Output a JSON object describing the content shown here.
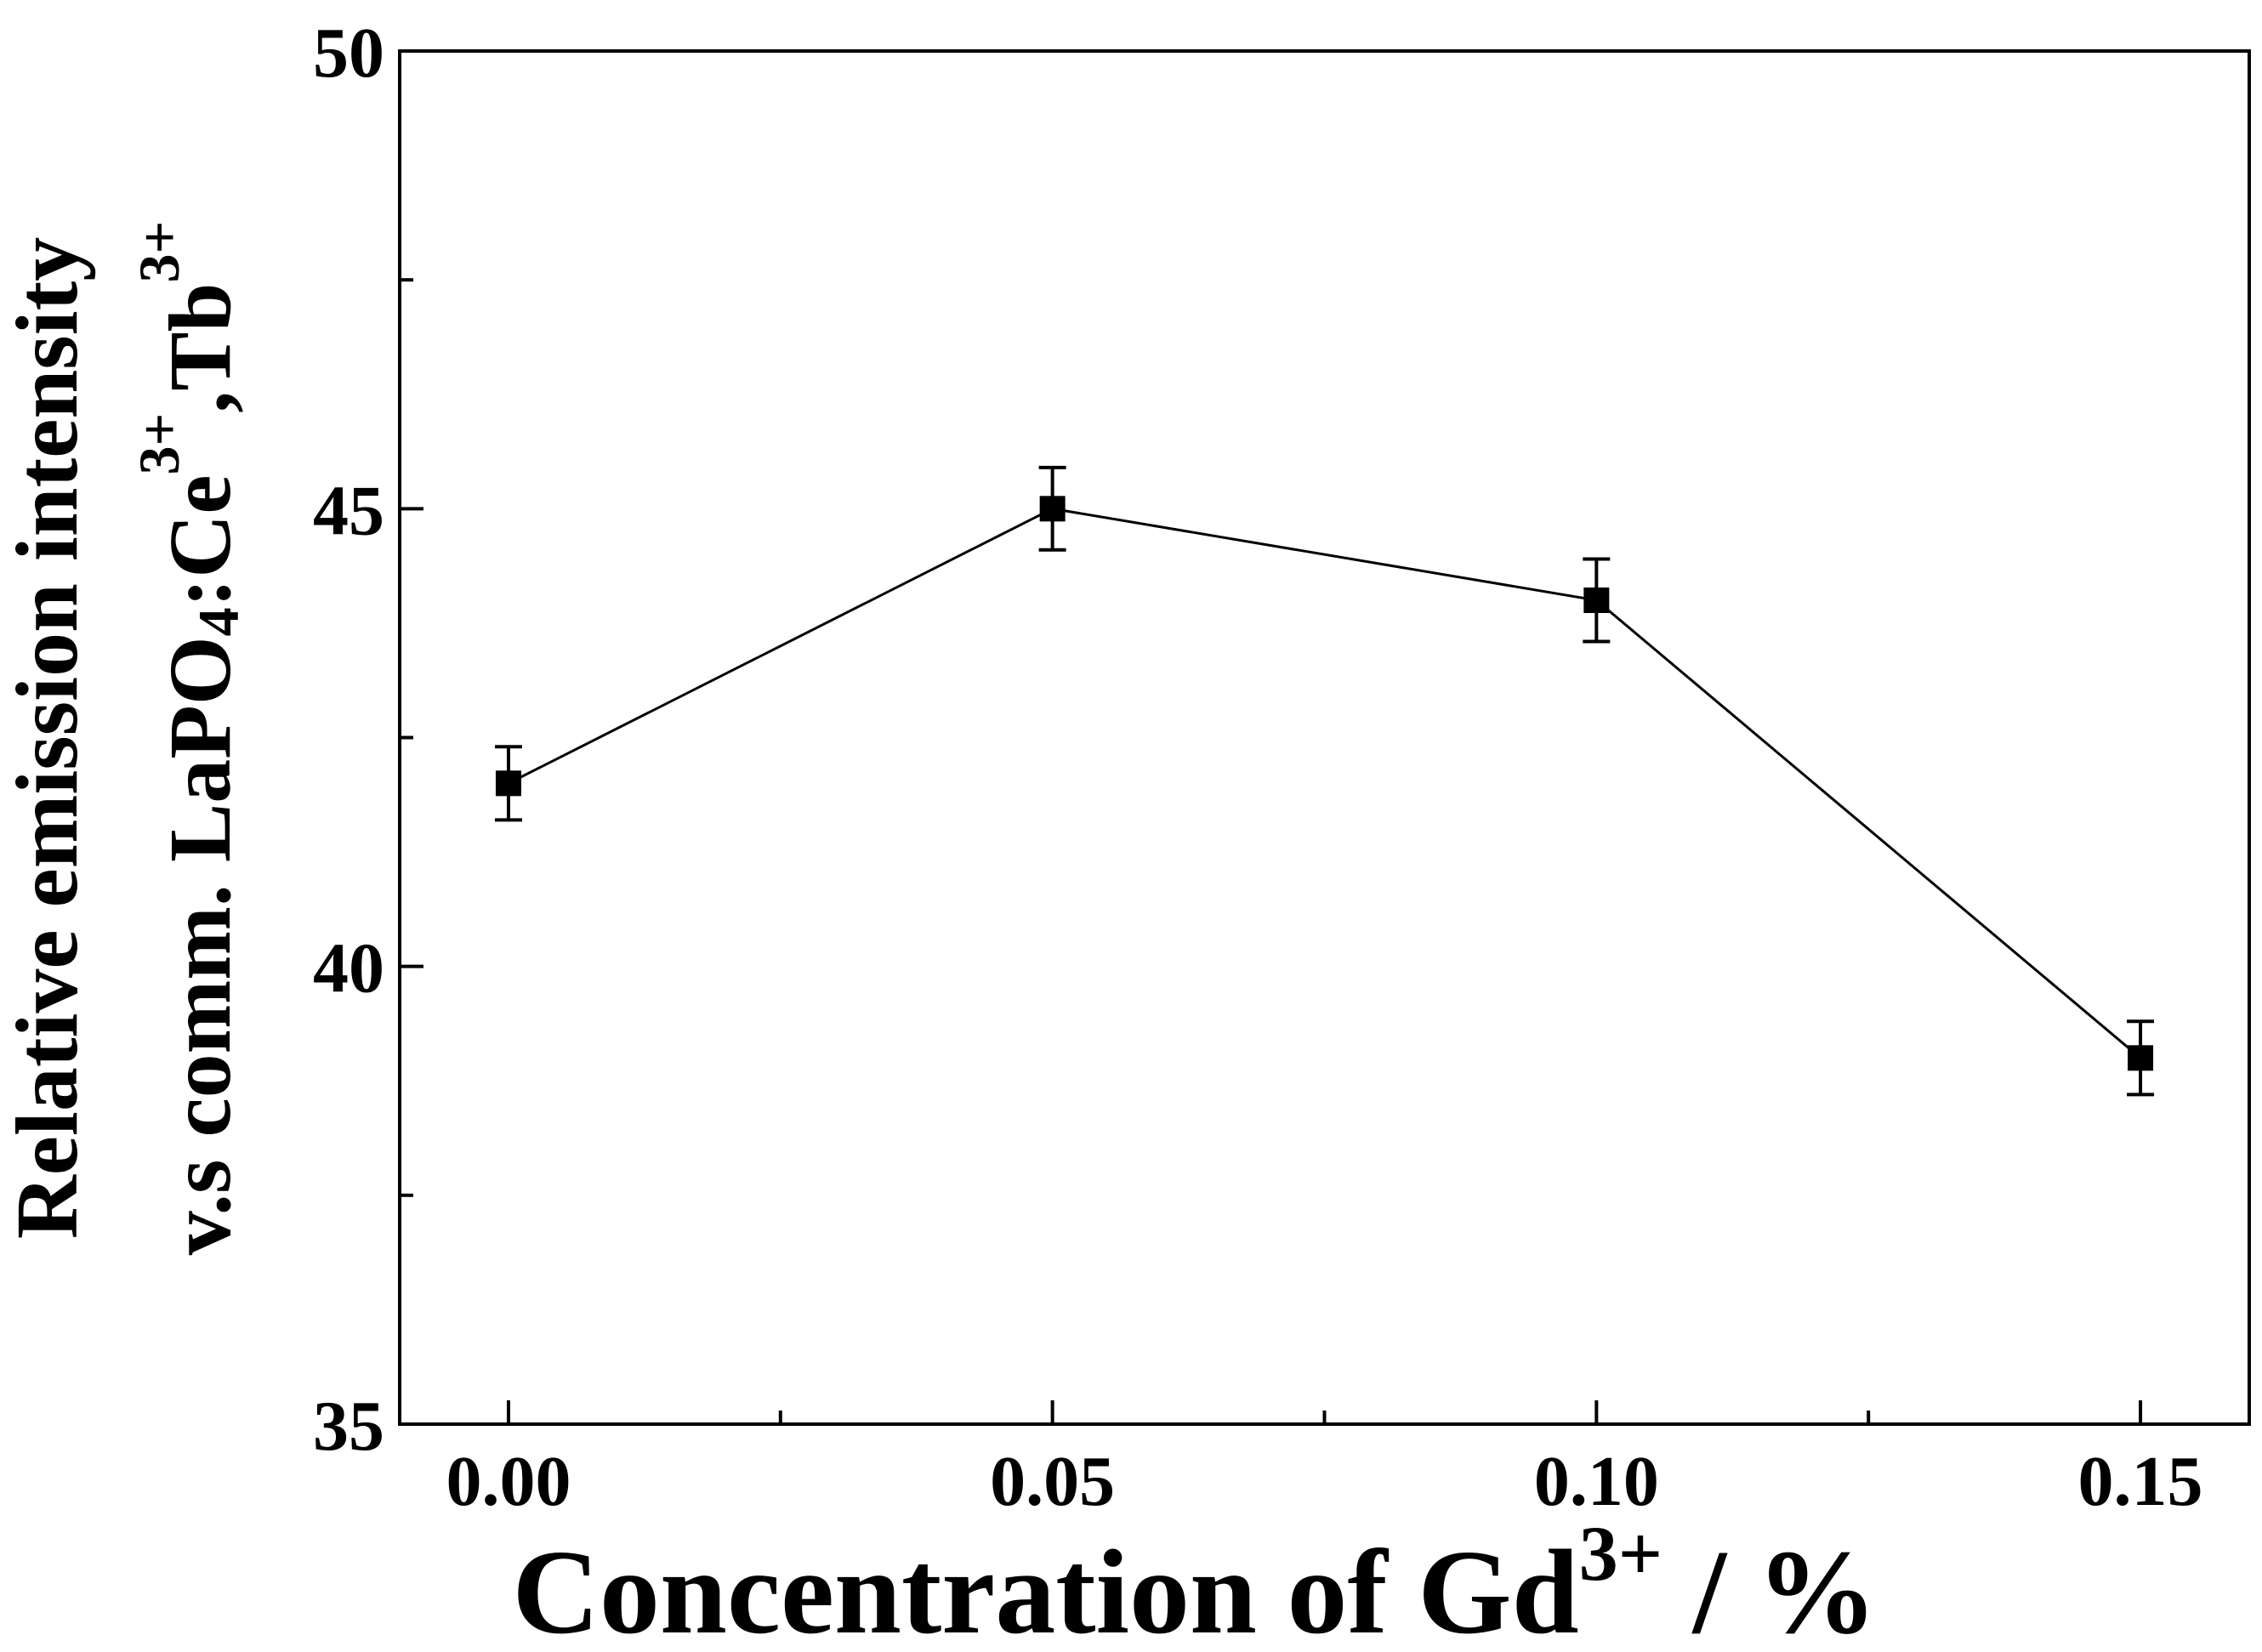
{
  "chart_data": {
    "type": "line",
    "title": "",
    "xlabel": {
      "main": "Concentration of Gd",
      "sup": "3+",
      "suffix": " / %"
    },
    "ylabel": {
      "line1": "Relative emission intensity",
      "line2_main": "v.s comm. LaPO",
      "line2_sub": "4",
      "line2_mid": ":Ce",
      "line2_sup1": "3+",
      "line2_mid2": ",Tb",
      "line2_sup2": "3+"
    },
    "xlim": [
      -0.01,
      0.16
    ],
    "ylim": [
      35,
      50
    ],
    "x_ticks": [
      {
        "value": 0.0,
        "label": "0.00"
      },
      {
        "value": 0.05,
        "label": "0.05"
      },
      {
        "value": 0.1,
        "label": "0.10"
      },
      {
        "value": 0.15,
        "label": "0.15"
      }
    ],
    "x_minor_ticks": [
      0.025,
      0.075,
      0.125
    ],
    "y_ticks": [
      {
        "value": 35,
        "label": "35"
      },
      {
        "value": 40,
        "label": "40"
      },
      {
        "value": 45,
        "label": "45"
      },
      {
        "value": 50,
        "label": "50"
      }
    ],
    "series": [
      {
        "name": "relative emission intensity",
        "x": [
          0.0,
          0.05,
          0.1,
          0.15
        ],
        "values": [
          42.0,
          45.0,
          44.0,
          39.0
        ],
        "error": [
          0.4,
          0.45,
          0.45,
          0.4
        ],
        "marker": "square",
        "color": "#000000"
      }
    ],
    "grid": false,
    "legend": "none"
  }
}
